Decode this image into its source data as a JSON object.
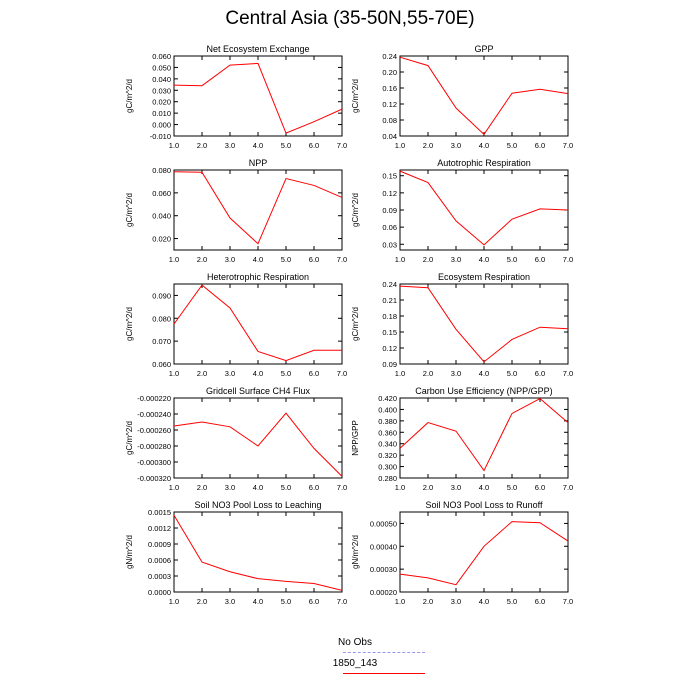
{
  "figure": {
    "title": "Central Asia (35-50N,55-70E)",
    "legend": [
      {
        "label": "No Obs",
        "color": "#9999ee",
        "style": "dashed"
      },
      {
        "label": "1850_143",
        "color": "#ff0000",
        "style": "solid"
      }
    ]
  },
  "chart_data": [
    {
      "type": "line",
      "title": "Net Ecosystem Exchange",
      "ylabel": "gC/m^2/d",
      "x": [
        1,
        2,
        3,
        4,
        5,
        6,
        7
      ],
      "xlim": [
        1,
        7
      ],
      "xticks": [
        "1.0",
        "2.0",
        "3.0",
        "4.0",
        "5.0",
        "6.0",
        "7.0"
      ],
      "ylim": [
        -0.01,
        0.06
      ],
      "yticks": [
        -0.01,
        0.0,
        0.01,
        0.02,
        0.03,
        0.04,
        0.05,
        0.06
      ],
      "ytick_labels": [
        "-0.010",
        "0.000",
        "0.010",
        "0.020",
        "0.030",
        "0.040",
        "0.050",
        "0.060"
      ],
      "series": [
        {
          "name": "1850_143",
          "color": "#ff0000",
          "values": [
            0.0345,
            0.034,
            0.052,
            0.0535,
            -0.0075,
            0.0025,
            0.0135
          ]
        }
      ]
    },
    {
      "type": "line",
      "title": "GPP",
      "ylabel": "gC/m^2/d",
      "x": [
        1,
        2,
        3,
        4,
        5,
        6,
        7
      ],
      "xlim": [
        1,
        7
      ],
      "xticks": [
        "1.0",
        "2.0",
        "3.0",
        "4.0",
        "5.0",
        "6.0",
        "7.0"
      ],
      "ylim": [
        0.04,
        0.24
      ],
      "yticks": [
        0.04,
        0.08,
        0.12,
        0.16,
        0.2,
        0.24
      ],
      "ytick_labels": [
        "0.04",
        "0.08",
        "0.12",
        "0.16",
        "0.20",
        "0.24"
      ],
      "series": [
        {
          "name": "1850_143",
          "color": "#ff0000",
          "values": [
            0.237,
            0.216,
            0.11,
            0.044,
            0.147,
            0.157,
            0.146
          ]
        }
      ]
    },
    {
      "type": "line",
      "title": "NPP",
      "ylabel": "gC/m^2/d",
      "x": [
        1,
        2,
        3,
        4,
        5,
        6,
        7
      ],
      "xlim": [
        1,
        7
      ],
      "xticks": [
        "1.0",
        "2.0",
        "3.0",
        "4.0",
        "5.0",
        "6.0",
        "7.0"
      ],
      "ylim": [
        0.01,
        0.08
      ],
      "yticks": [
        0.02,
        0.04,
        0.06,
        0.08
      ],
      "ytick_labels": [
        "0.020",
        "0.040",
        "0.060",
        "0.080"
      ],
      "series": [
        {
          "name": "1850_143",
          "color": "#ff0000",
          "values": [
            0.0785,
            0.078,
            0.038,
            0.0155,
            0.0725,
            0.0665,
            0.056
          ]
        }
      ]
    },
    {
      "type": "line",
      "title": "Autotrophic Respiration",
      "ylabel": "gC/m^2/d",
      "x": [
        1,
        2,
        3,
        4,
        5,
        6,
        7
      ],
      "xlim": [
        1,
        7
      ],
      "xticks": [
        "1.0",
        "2.0",
        "3.0",
        "4.0",
        "5.0",
        "6.0",
        "7.0"
      ],
      "ylim": [
        0.02,
        0.16
      ],
      "yticks": [
        0.03,
        0.06,
        0.09,
        0.12,
        0.15
      ],
      "ytick_labels": [
        "0.03",
        "0.06",
        "0.09",
        "0.12",
        "0.15"
      ],
      "series": [
        {
          "name": "1850_143",
          "color": "#ff0000",
          "values": [
            0.158,
            0.138,
            0.071,
            0.029,
            0.074,
            0.092,
            0.09
          ]
        }
      ]
    },
    {
      "type": "line",
      "title": "Heterotrophic Respiration",
      "ylabel": "gC/m^2/d",
      "x": [
        1,
        2,
        3,
        4,
        5,
        6,
        7
      ],
      "xlim": [
        1,
        7
      ],
      "xticks": [
        "1.0",
        "2.0",
        "3.0",
        "4.0",
        "5.0",
        "6.0",
        "7.0"
      ],
      "ylim": [
        0.06,
        0.095
      ],
      "yticks": [
        0.06,
        0.07,
        0.08,
        0.09
      ],
      "ytick_labels": [
        "0.060",
        "0.070",
        "0.080",
        "0.090"
      ],
      "series": [
        {
          "name": "1850_143",
          "color": "#ff0000",
          "values": [
            0.0775,
            0.0945,
            0.0845,
            0.0655,
            0.0615,
            0.066,
            0.066
          ]
        }
      ]
    },
    {
      "type": "line",
      "title": "Ecosystem Respiration",
      "ylabel": "gC/m^2/d",
      "x": [
        1,
        2,
        3,
        4,
        5,
        6,
        7
      ],
      "xlim": [
        1,
        7
      ],
      "xticks": [
        "1.0",
        "2.0",
        "3.0",
        "4.0",
        "5.0",
        "6.0",
        "7.0"
      ],
      "ylim": [
        0.09,
        0.24
      ],
      "yticks": [
        0.09,
        0.12,
        0.15,
        0.18,
        0.21,
        0.24
      ],
      "ytick_labels": [
        "0.09",
        "0.12",
        "0.15",
        "0.18",
        "0.21",
        "0.24"
      ],
      "series": [
        {
          "name": "1850_143",
          "color": "#ff0000",
          "values": [
            0.236,
            0.233,
            0.155,
            0.094,
            0.136,
            0.159,
            0.156
          ]
        }
      ]
    },
    {
      "type": "line",
      "title": "Gridcell Surface CH4 Flux",
      "ylabel": "gC/m^2/d",
      "x": [
        1,
        2,
        3,
        4,
        5,
        6,
        7
      ],
      "xlim": [
        1,
        7
      ],
      "xticks": [
        "1.0",
        "2.0",
        "3.0",
        "4.0",
        "5.0",
        "6.0",
        "7.0"
      ],
      "ylim": [
        -0.00032,
        -0.00022
      ],
      "yticks": [
        -0.00032,
        -0.0003,
        -0.00028,
        -0.00026,
        -0.00024,
        -0.00022
      ],
      "ytick_labels": [
        "-0.000320",
        "-0.000300",
        "-0.000280",
        "-0.000260",
        "-0.000240",
        "-0.000220"
      ],
      "series": [
        {
          "name": "1850_143",
          "color": "#ff0000",
          "values": [
            -0.000255,
            -0.00025,
            -0.000256,
            -0.00028,
            -0.000239,
            -0.000283,
            -0.000318
          ]
        }
      ]
    },
    {
      "type": "line",
      "title": "Carbon Use Efficiency (NPP/GPP)",
      "ylabel": "NPP/GPP",
      "x": [
        1,
        2,
        3,
        4,
        5,
        6,
        7
      ],
      "xlim": [
        1,
        7
      ],
      "xticks": [
        "1.0",
        "2.0",
        "3.0",
        "4.0",
        "5.0",
        "6.0",
        "7.0"
      ],
      "ylim": [
        0.28,
        0.42
      ],
      "yticks": [
        0.28,
        0.3,
        0.32,
        0.34,
        0.36,
        0.38,
        0.4,
        0.42
      ],
      "ytick_labels": [
        "0.280",
        "0.300",
        "0.320",
        "0.340",
        "0.360",
        "0.380",
        "0.400",
        "0.420"
      ],
      "series": [
        {
          "name": "1850_143",
          "color": "#ff0000",
          "values": [
            0.332,
            0.377,
            0.362,
            0.293,
            0.393,
            0.419,
            0.377
          ]
        }
      ]
    },
    {
      "type": "line",
      "title": "Soil NO3 Pool Loss to Leaching",
      "ylabel": "gN/m^2/d",
      "x": [
        1,
        2,
        3,
        4,
        5,
        6,
        7
      ],
      "xlim": [
        1,
        7
      ],
      "xticks": [
        "1.0",
        "2.0",
        "3.0",
        "4.0",
        "5.0",
        "6.0",
        "7.0"
      ],
      "ylim": [
        0.0,
        0.0015
      ],
      "yticks": [
        0.0,
        0.0003,
        0.0006,
        0.0009,
        0.0012,
        0.0015
      ],
      "ytick_labels": [
        "0.0000",
        "0.0003",
        "0.0006",
        "0.0009",
        "0.0012",
        "0.0015"
      ],
      "series": [
        {
          "name": "1850_143",
          "color": "#ff0000",
          "values": [
            0.00144,
            0.00056,
            0.00038,
            0.00025,
            0.0002,
            0.00016,
            3e-05
          ]
        }
      ]
    },
    {
      "type": "line",
      "title": "Soil NO3 Pool Loss to Runoff",
      "ylabel": "gN/m^2/d",
      "x": [
        1,
        2,
        3,
        4,
        5,
        6,
        7
      ],
      "xlim": [
        1,
        7
      ],
      "xticks": [
        "1.0",
        "2.0",
        "3.0",
        "4.0",
        "5.0",
        "6.0",
        "7.0"
      ],
      "ylim": [
        0.0002,
        0.00055
      ],
      "yticks": [
        0.0002,
        0.0003,
        0.0004,
        0.0005
      ],
      "ytick_labels": [
        "0.00020",
        "0.00030",
        "0.00040",
        "0.00050"
      ],
      "series": [
        {
          "name": "1850_143",
          "color": "#ff0000",
          "values": [
            0.000278,
            0.000262,
            0.000232,
            0.0004,
            0.000508,
            0.000503,
            0.000423
          ]
        }
      ]
    }
  ]
}
